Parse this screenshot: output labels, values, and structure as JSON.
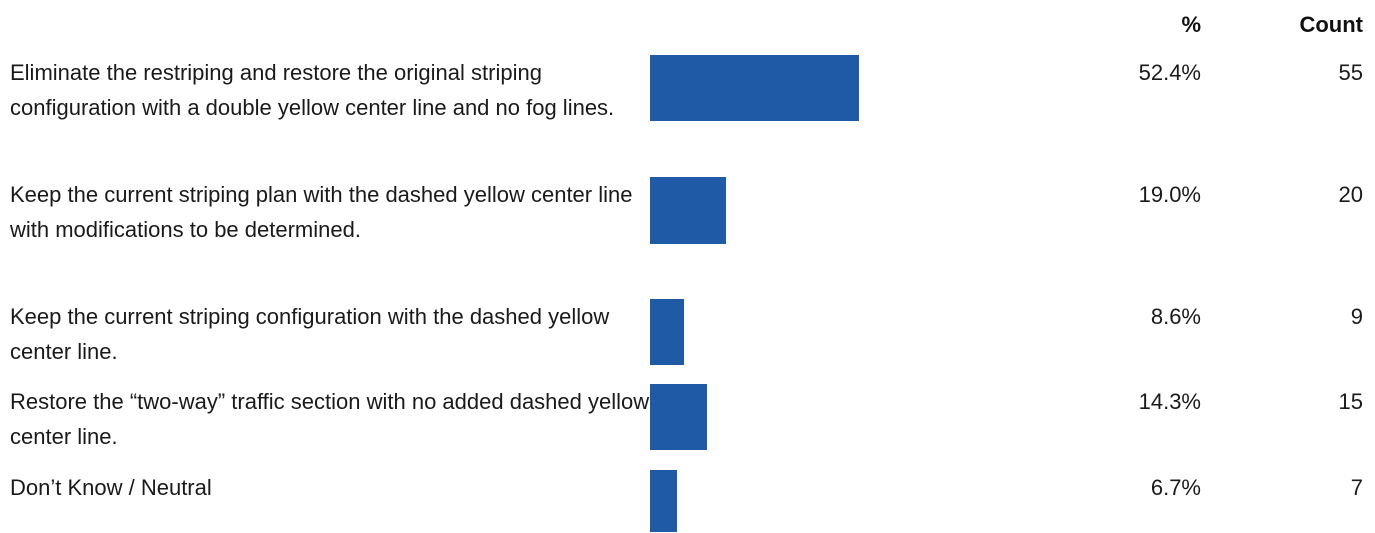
{
  "header": {
    "pct_label": "%",
    "count_label": "Count"
  },
  "chart_data": {
    "type": "bar",
    "orientation": "horizontal",
    "columns": [
      "%",
      "Count"
    ],
    "bar_color": "#1f5aa6",
    "categories": [
      "Eliminate the restriping and restore the original striping configuration with a double yellow center line and no fog lines.",
      "Keep the current striping plan with the dashed yellow center line with modifications to be determined.",
      "Keep the current striping configuration with the dashed yellow center line.",
      "Restore the “two-way” traffic section with no added dashed yellow center line.",
      "Don’t Know / Neutral"
    ],
    "percent_labels": [
      "52.4%",
      "19.0%",
      "8.6%",
      "14.3%",
      "6.7%"
    ],
    "values": [
      52.4,
      19.0,
      8.6,
      14.3,
      6.7
    ],
    "counts": [
      55,
      20,
      9,
      15,
      7
    ],
    "xlim": [
      0,
      52.4
    ]
  }
}
